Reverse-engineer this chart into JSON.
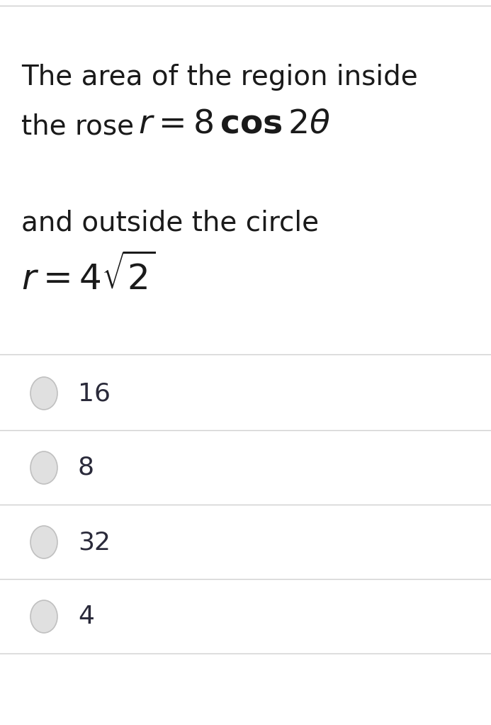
{
  "background_color": "#ffffff",
  "line1": "The area of the region inside",
  "line2_prefix": "the rose ",
  "line3": "and outside the circle",
  "options": [
    "16",
    "8",
    "32",
    "4"
  ],
  "divider_color": "#d0d0d0",
  "circle_fill": "#e0e0e0",
  "circle_edge": "#c0c0c0",
  "text_color": "#1a1a1a",
  "option_text_color": "#2a2a3a",
  "top_line_color": "#cccccc",
  "title_fontsize": 28,
  "math_line2_fontsize": 34,
  "math_line4_fontsize": 36,
  "option_fontsize": 26
}
